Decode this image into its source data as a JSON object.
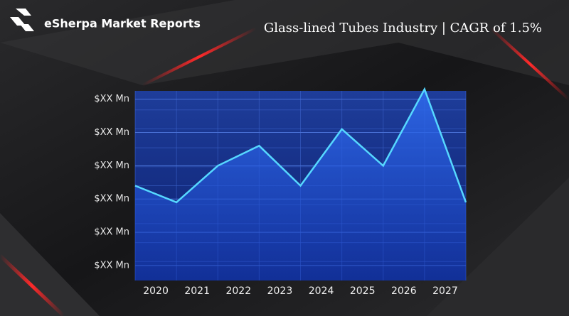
{
  "brand": "eSherpa Market Reports",
  "chart_data": {
    "type": "area",
    "title": "Glass-lined Tubes Industry | CAGR of 1.5%",
    "x": [
      2019.5,
      2020.5,
      2021.5,
      2022.5,
      2023.5,
      2024.5,
      2025.5,
      2026.5,
      2027.5
    ],
    "values": [
      2.4,
      1.9,
      3.0,
      3.6,
      2.4,
      4.1,
      3.0,
      5.3,
      1.9
    ],
    "color": "#56d8ff",
    "xlim": [
      2019.5,
      2027.5
    ],
    "xticks": [
      2020,
      2021,
      2022,
      2023,
      2024,
      2025,
      2026,
      2027
    ],
    "ylim": [
      -0.45,
      5.25
    ],
    "yticks": [
      {
        "value": 0,
        "label": "$XX Mn"
      },
      {
        "value": 1,
        "label": "$XX Mn"
      },
      {
        "value": 2,
        "label": "$XX Mn"
      },
      {
        "value": 3,
        "label": "$XX Mn"
      },
      {
        "value": 4,
        "label": "$XX Mn"
      },
      {
        "value": 5,
        "label": "$XX Mn"
      }
    ],
    "grid": true
  }
}
